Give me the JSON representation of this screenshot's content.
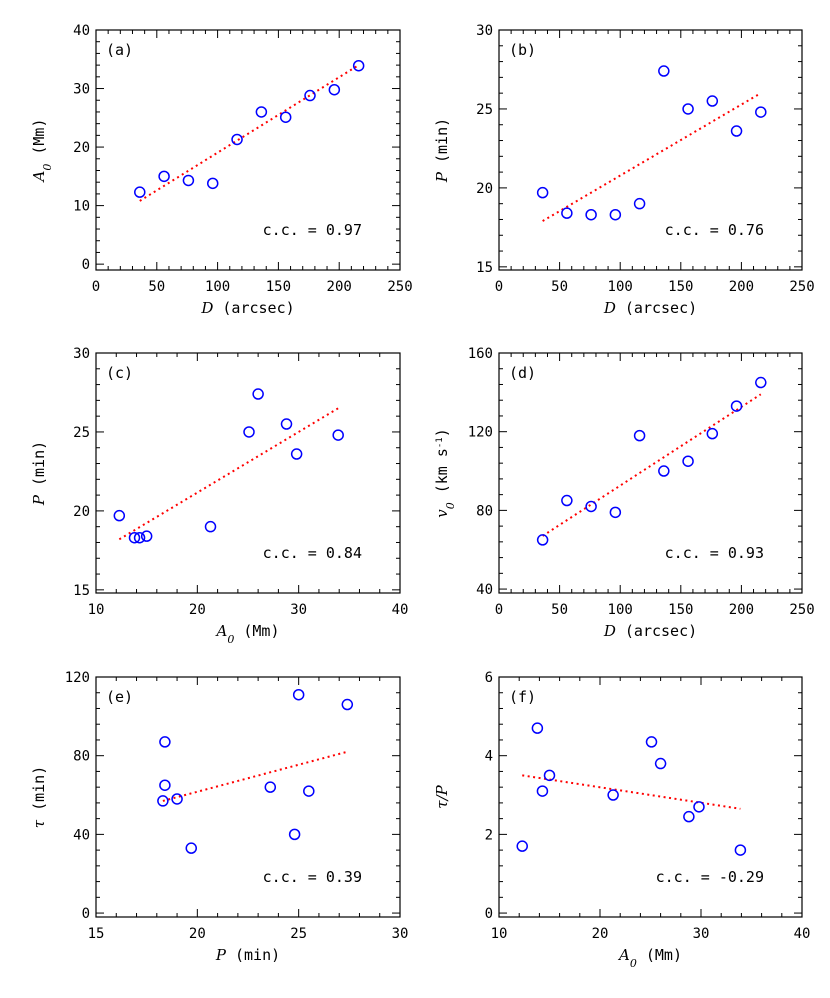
{
  "colors": {
    "points": "#0000ff",
    "fit": "#ff0000",
    "axes": "#000000"
  },
  "chart_data": [
    {
      "type": "scatter",
      "panel": "(a)",
      "xlabel": {
        "var": "D",
        "unit": " (arcsec)"
      },
      "ylabel": {
        "var": "A",
        "sub": "0",
        "unit": " (Mm)"
      },
      "xlim": [
        0,
        250
      ],
      "ylim": [
        -1,
        40
      ],
      "xticks": [
        0,
        50,
        100,
        150,
        200,
        250
      ],
      "yticks": [
        0,
        10,
        20,
        30,
        40
      ],
      "x": [
        36,
        56,
        76,
        96,
        116,
        136,
        156,
        176,
        196,
        216
      ],
      "y": [
        12.3,
        15.0,
        14.3,
        13.8,
        21.3,
        26.0,
        25.1,
        28.8,
        29.8,
        33.9
      ],
      "fit": {
        "x": [
          36,
          216
        ],
        "y": [
          10.8,
          34.0
        ]
      },
      "cc_text": "c.c. = 0.97",
      "grid": false,
      "legend": false
    },
    {
      "type": "scatter",
      "panel": "(b)",
      "xlabel": {
        "var": "D",
        "unit": " (arcsec)"
      },
      "ylabel": {
        "var": "P",
        "sub": "",
        "unit": " (min)"
      },
      "xlim": [
        0,
        250
      ],
      "ylim": [
        14.8,
        30
      ],
      "xticks": [
        0,
        50,
        100,
        150,
        200,
        250
      ],
      "yticks": [
        15,
        20,
        25,
        30
      ],
      "x": [
        36,
        56,
        76,
        96,
        116,
        136,
        156,
        176,
        196,
        216
      ],
      "y": [
        19.7,
        18.4,
        18.3,
        18.3,
        19.0,
        27.4,
        25.0,
        25.5,
        23.6,
        24.8
      ],
      "fit": {
        "x": [
          36,
          216
        ],
        "y": [
          17.9,
          26.0
        ]
      },
      "cc_text": "c.c. = 0.76",
      "grid": false,
      "legend": false
    },
    {
      "type": "scatter",
      "panel": "(c)",
      "xlabel": {
        "var": "A",
        "sub": "0",
        "unit": " (Mm)"
      },
      "ylabel": {
        "var": "P",
        "sub": "",
        "unit": " (min)"
      },
      "xlim": [
        10,
        40
      ],
      "ylim": [
        14.8,
        30
      ],
      "xticks": [
        10,
        20,
        30,
        40
      ],
      "yticks": [
        15,
        20,
        25,
        30
      ],
      "x": [
        12.3,
        13.8,
        14.3,
        15.0,
        21.3,
        25.1,
        26.0,
        28.8,
        29.8,
        33.9
      ],
      "y": [
        19.7,
        18.3,
        18.3,
        18.4,
        19.0,
        25.0,
        27.4,
        25.5,
        23.6,
        24.8
      ],
      "fit": {
        "x": [
          12.3,
          33.9
        ],
        "y": [
          18.2,
          26.5
        ]
      },
      "cc_text": "c.c. = 0.84",
      "grid": false,
      "legend": false
    },
    {
      "type": "scatter",
      "panel": "(d)",
      "xlabel": {
        "var": "D",
        "unit": " (arcsec)"
      },
      "ylabel": {
        "var": "v",
        "sub": "0",
        "unit": " (km s",
        "sup": "-1",
        "unit2": ")"
      },
      "xlim": [
        0,
        250
      ],
      "ylim": [
        38,
        160
      ],
      "xticks": [
        0,
        50,
        100,
        150,
        200,
        250
      ],
      "yticks": [
        40,
        80,
        120,
        160
      ],
      "x": [
        36,
        56,
        76,
        96,
        116,
        136,
        156,
        176,
        196,
        216
      ],
      "y": [
        65,
        85,
        82,
        79,
        118,
        100,
        105,
        119,
        133,
        145
      ],
      "fit": {
        "x": [
          36,
          216
        ],
        "y": [
          67,
          139
        ]
      },
      "cc_text": "c.c. = 0.93",
      "grid": false,
      "legend": false
    },
    {
      "type": "scatter",
      "panel": "(e)",
      "xlabel": {
        "var": "P",
        "sub": "",
        "unit": " (min)"
      },
      "ylabel": {
        "var": "τ",
        "sub": "",
        "unit": " (min)"
      },
      "xlim": [
        15,
        30
      ],
      "ylim": [
        -2,
        120
      ],
      "xticks": [
        15,
        20,
        25,
        30
      ],
      "yticks": [
        0,
        40,
        80,
        120
      ],
      "x": [
        18.3,
        18.4,
        18.4,
        19.0,
        19.7,
        23.6,
        24.8,
        25.0,
        25.5,
        27.4
      ],
      "y": [
        57,
        87,
        65,
        58,
        33,
        64,
        40,
        111,
        62,
        106
      ],
      "fit": {
        "x": [
          18.3,
          27.4
        ],
        "y": [
          57,
          82
        ]
      },
      "cc_text": "c.c. = 0.39",
      "grid": false,
      "legend": false
    },
    {
      "type": "scatter",
      "panel": "(f)",
      "xlabel": {
        "var": "A",
        "sub": "0",
        "unit": " (Mm)"
      },
      "ylabel": {
        "var": "τ/P",
        "sub": "",
        "unit": ""
      },
      "xlim": [
        10,
        40
      ],
      "ylim": [
        -0.1,
        6
      ],
      "xticks": [
        10,
        20,
        30,
        40
      ],
      "yticks": [
        0,
        2,
        4,
        6
      ],
      "x": [
        12.3,
        13.8,
        14.3,
        15.0,
        21.3,
        25.1,
        26.0,
        28.8,
        29.8,
        33.9
      ],
      "y": [
        1.7,
        4.7,
        3.1,
        3.5,
        3.0,
        4.35,
        3.8,
        2.45,
        2.7,
        1.6
      ],
      "fit": {
        "x": [
          12.3,
          33.9
        ],
        "y": [
          3.5,
          2.65
        ]
      },
      "cc_text": "c.c. = -0.29",
      "grid": false,
      "legend": false
    }
  ]
}
